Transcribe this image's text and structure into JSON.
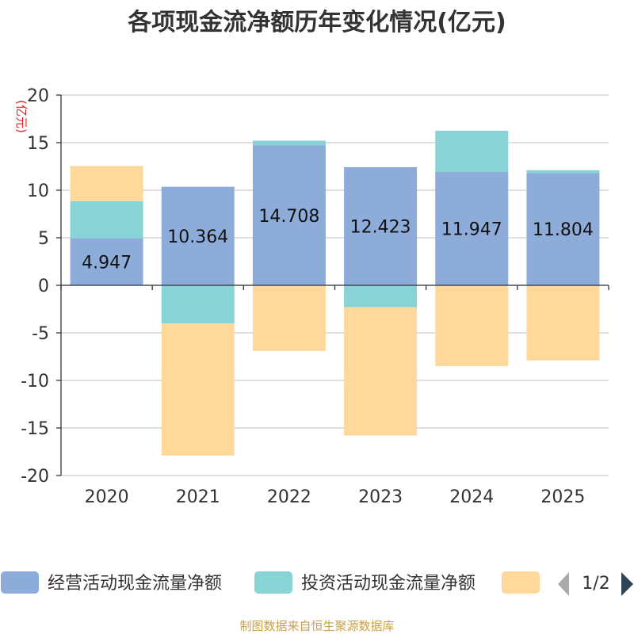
{
  "chart_data": {
    "type": "bar",
    "stacked": true,
    "title": "各项现金流净额历年变化情况(亿元)",
    "ylabel": "(亿元)",
    "ylim": [
      -20,
      20
    ],
    "yticks": [
      "20",
      "15",
      "10",
      "5",
      "0",
      "-5",
      "-10",
      "-15",
      "-20"
    ],
    "categories": [
      "2020",
      "2021",
      "2022",
      "2023",
      "2024",
      "2025"
    ],
    "series": [
      {
        "name": "经营活动现金流量净额",
        "color": "#8eacd9",
        "values": [
          4.947,
          10.364,
          14.708,
          12.423,
          11.947,
          11.804
        ],
        "labels": [
          "4.947",
          "10.364",
          "14.708",
          "12.423",
          "11.947",
          "11.804"
        ]
      },
      {
        "name": "投资活动现金流量净额",
        "color": "#87d3d6",
        "values": [
          3.9,
          -4.0,
          0.5,
          -2.3,
          4.3,
          0.3
        ]
      },
      {
        "name": "",
        "color": "#fed99b",
        "values": [
          3.7,
          -13.9,
          -6.9,
          -13.5,
          -8.5,
          -7.9
        ]
      }
    ],
    "legend": {
      "position": "bottom",
      "page": "1/2"
    },
    "source": "制图数据来自恒生聚源数据库"
  }
}
